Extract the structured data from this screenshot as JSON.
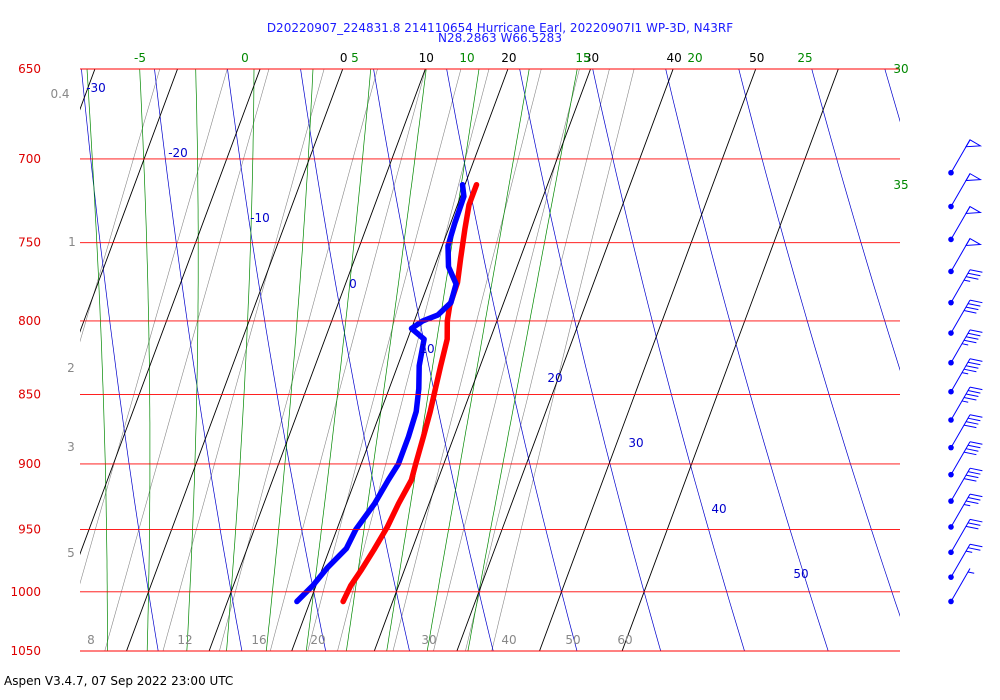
{
  "header": {
    "title_line1": "D20220907_224831.8 214110654 Hurricane Earl, 20220907I1 WP-3D, N43RF",
    "title_line2": "N28.2863 W66.5283"
  },
  "footer": {
    "text": "Aspen V3.4.7, 07 Sep 2022  23:00 UTC"
  },
  "colors": {
    "isobar": "#ff0000",
    "isobar_label": "#dd0000",
    "isotherm": "#000000",
    "dry_adiabat": "#0000cc",
    "moist_adiabat": "#008800",
    "mixing_ratio": "#888888",
    "temperature": "#ff0000",
    "dewpoint": "#0000ff",
    "wind": "#0000ff"
  },
  "chart_data": {
    "type": "skew-t",
    "y_axis": {
      "label_unit": "hPa",
      "range": [
        1050,
        650
      ],
      "isobars": [
        "650",
        "700",
        "750",
        "800",
        "850",
        "900",
        "950",
        "1000",
        "1050"
      ]
    },
    "isotherm_labels": [
      "0",
      "10",
      "20",
      "30",
      "40",
      "50"
    ],
    "dry_adiabat_labels": [
      "-30",
      "-20",
      "-10",
      "0",
      "10",
      "20",
      "30",
      "40",
      "50"
    ],
    "moist_adiabat_labels": [
      "-5",
      "0",
      "5",
      "10",
      "15",
      "20",
      "25",
      "30",
      "35"
    ],
    "mixing_ratio_labels": [
      "0.4",
      "1",
      "2",
      "3",
      "5",
      "8",
      "12",
      "16",
      "20",
      "30",
      "40",
      "50",
      "60"
    ],
    "temperature_profile": {
      "name": "Temperature",
      "points": [
        {
          "p": 1008,
          "t": 24.0
        },
        {
          "p": 995,
          "t": 24.2
        },
        {
          "p": 982,
          "t": 24.8
        },
        {
          "p": 966,
          "t": 25.4
        },
        {
          "p": 948,
          "t": 26.0
        },
        {
          "p": 930,
          "t": 26.3
        },
        {
          "p": 912,
          "t": 26.8
        },
        {
          "p": 900,
          "t": 26.6
        },
        {
          "p": 880,
          "t": 26.3
        },
        {
          "p": 862,
          "t": 26.0
        },
        {
          "p": 846,
          "t": 25.6
        },
        {
          "p": 830,
          "t": 25.2
        },
        {
          "p": 812,
          "t": 24.8
        },
        {
          "p": 800,
          "t": 24.0
        },
        {
          "p": 790,
          "t": 23.6
        },
        {
          "p": 775,
          "t": 23.5
        },
        {
          "p": 760,
          "t": 22.8
        },
        {
          "p": 742,
          "t": 22.0
        },
        {
          "p": 727,
          "t": 21.4
        },
        {
          "p": 715,
          "t": 21.4
        }
      ]
    },
    "dewpoint_profile": {
      "name": "Dewpoint",
      "points": [
        {
          "p": 1008,
          "t": 18.4
        },
        {
          "p": 995,
          "t": 19.6
        },
        {
          "p": 980,
          "t": 20.6
        },
        {
          "p": 965,
          "t": 22.0
        },
        {
          "p": 950,
          "t": 22.3
        },
        {
          "p": 930,
          "t": 23.4
        },
        {
          "p": 912,
          "t": 24.0
        },
        {
          "p": 900,
          "t": 24.5
        },
        {
          "p": 880,
          "t": 24.5
        },
        {
          "p": 862,
          "t": 24.3
        },
        {
          "p": 846,
          "t": 23.6
        },
        {
          "p": 830,
          "t": 22.6
        },
        {
          "p": 812,
          "t": 22.0
        },
        {
          "p": 805,
          "t": 20.0
        },
        {
          "p": 800,
          "t": 21.0
        },
        {
          "p": 796,
          "t": 22.6
        },
        {
          "p": 788,
          "t": 23.6
        },
        {
          "p": 776,
          "t": 23.4
        },
        {
          "p": 765,
          "t": 21.7
        },
        {
          "p": 752,
          "t": 20.7
        },
        {
          "p": 738,
          "t": 20.5
        },
        {
          "p": 722,
          "t": 20.4
        },
        {
          "p": 715,
          "t": 19.7
        }
      ]
    },
    "wind_barbs": {
      "pressures": [
        1008,
        988,
        968,
        948,
        928,
        908,
        888,
        868,
        848,
        828,
        808,
        788,
        768,
        748,
        728,
        708
      ],
      "speeds_kt": [
        5,
        25,
        30,
        35,
        40,
        40,
        40,
        45,
        45,
        45,
        40,
        35,
        50,
        50,
        50,
        50
      ]
    }
  }
}
